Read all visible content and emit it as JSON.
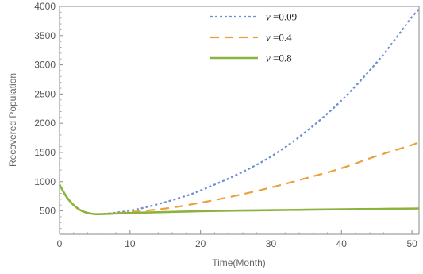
{
  "chart_data": {
    "type": "line",
    "title": "",
    "xlabel": "Time(Month)",
    "ylabel": "Recovered Population",
    "xlim": [
      0,
      51
    ],
    "ylim": [
      100,
      4000
    ],
    "xticks": [
      0,
      10,
      20,
      30,
      40,
      50
    ],
    "yticks": [
      500,
      1000,
      1500,
      2000,
      2500,
      3000,
      3500,
      4000
    ],
    "legend_position": "top-center",
    "grid": false,
    "series": [
      {
        "name": "v =0.09",
        "legend_symbol": "v",
        "legend_value": "=0.09",
        "color": "#6B8FD0",
        "style": "dotted",
        "x": [
          0,
          1,
          2,
          3,
          4,
          5,
          6,
          8,
          10,
          12,
          15,
          18,
          20,
          25,
          30,
          35,
          40,
          45,
          48,
          50,
          51
        ],
        "y": [
          950,
          740,
          600,
          510,
          465,
          445,
          448,
          470,
          505,
          555,
          650,
          760,
          850,
          1110,
          1430,
          1860,
          2390,
          3040,
          3500,
          3820,
          3950
        ]
      },
      {
        "name": "v =0.4",
        "legend_symbol": "v",
        "legend_value": "=0.4",
        "color": "#E8A23C",
        "style": "dashed",
        "x": [
          0,
          1,
          2,
          3,
          4,
          5,
          6,
          8,
          10,
          15,
          20,
          25,
          30,
          35,
          40,
          45,
          50,
          51
        ],
        "y": [
          950,
          740,
          600,
          510,
          465,
          445,
          447,
          460,
          480,
          540,
          640,
          760,
          900,
          1060,
          1230,
          1440,
          1630,
          1680
        ]
      },
      {
        "name": "v =0.8",
        "legend_symbol": "v",
        "legend_value": "=0.8",
        "color": "#8DB33F",
        "style": "solid",
        "x": [
          0,
          1,
          2,
          3,
          4,
          5,
          6,
          8,
          10,
          15,
          20,
          25,
          30,
          35,
          40,
          45,
          50,
          51
        ],
        "y": [
          950,
          740,
          600,
          510,
          465,
          445,
          445,
          455,
          465,
          480,
          495,
          505,
          512,
          520,
          527,
          533,
          540,
          542
        ]
      }
    ]
  }
}
